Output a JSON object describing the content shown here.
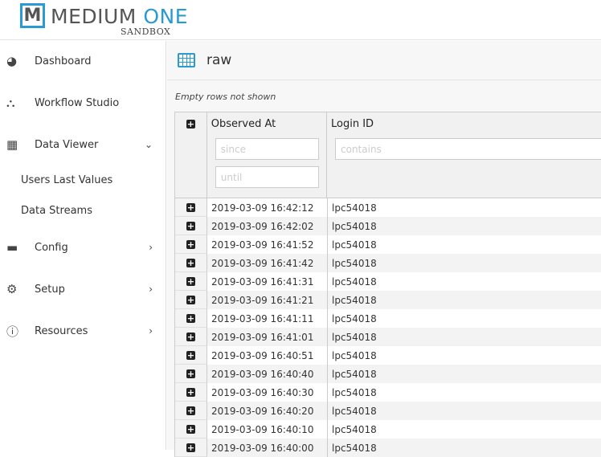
{
  "brand": {
    "logo_letter": "M",
    "name_part1": "MEDIUM ",
    "name_part2": "ONE",
    "subtitle": "SANDBOX",
    "accent": "#2a9ad3"
  },
  "sidebar": {
    "items": [
      {
        "label": "Dashboard",
        "icon": "tachometer-icon"
      },
      {
        "label": "Workflow Studio",
        "icon": "sitemap-icon"
      },
      {
        "label": "Data Viewer",
        "icon": "table-icon",
        "chevron": "down"
      },
      {
        "label": "Config",
        "icon": "desktop-icon",
        "chevron": "right"
      },
      {
        "label": "Setup",
        "icon": "gears-icon",
        "chevron": "right"
      },
      {
        "label": "Resources",
        "icon": "info-circle-icon",
        "chevron": "right"
      }
    ],
    "subitems": [
      {
        "label": "Users Last Values"
      },
      {
        "label": "Data Streams"
      }
    ]
  },
  "main": {
    "title": "raw",
    "note": "Empty rows not shown",
    "columns": [
      {
        "label": "Observed At",
        "filters": [
          "since",
          "until"
        ]
      },
      {
        "label": "Login ID",
        "filters": [
          "contains"
        ]
      }
    ],
    "rows": [
      [
        "2019-03-09 16:42:12",
        "lpc54018"
      ],
      [
        "2019-03-09 16:42:02",
        "lpc54018"
      ],
      [
        "2019-03-09 16:41:52",
        "lpc54018"
      ],
      [
        "2019-03-09 16:41:42",
        "lpc54018"
      ],
      [
        "2019-03-09 16:41:31",
        "lpc54018"
      ],
      [
        "2019-03-09 16:41:21",
        "lpc54018"
      ],
      [
        "2019-03-09 16:41:11",
        "lpc54018"
      ],
      [
        "2019-03-09 16:41:01",
        "lpc54018"
      ],
      [
        "2019-03-09 16:40:51",
        "lpc54018"
      ],
      [
        "2019-03-09 16:40:40",
        "lpc54018"
      ],
      [
        "2019-03-09 16:40:30",
        "lpc54018"
      ],
      [
        "2019-03-09 16:40:20",
        "lpc54018"
      ],
      [
        "2019-03-09 16:40:10",
        "lpc54018"
      ],
      [
        "2019-03-09 16:40:00",
        "lpc54018"
      ]
    ]
  }
}
